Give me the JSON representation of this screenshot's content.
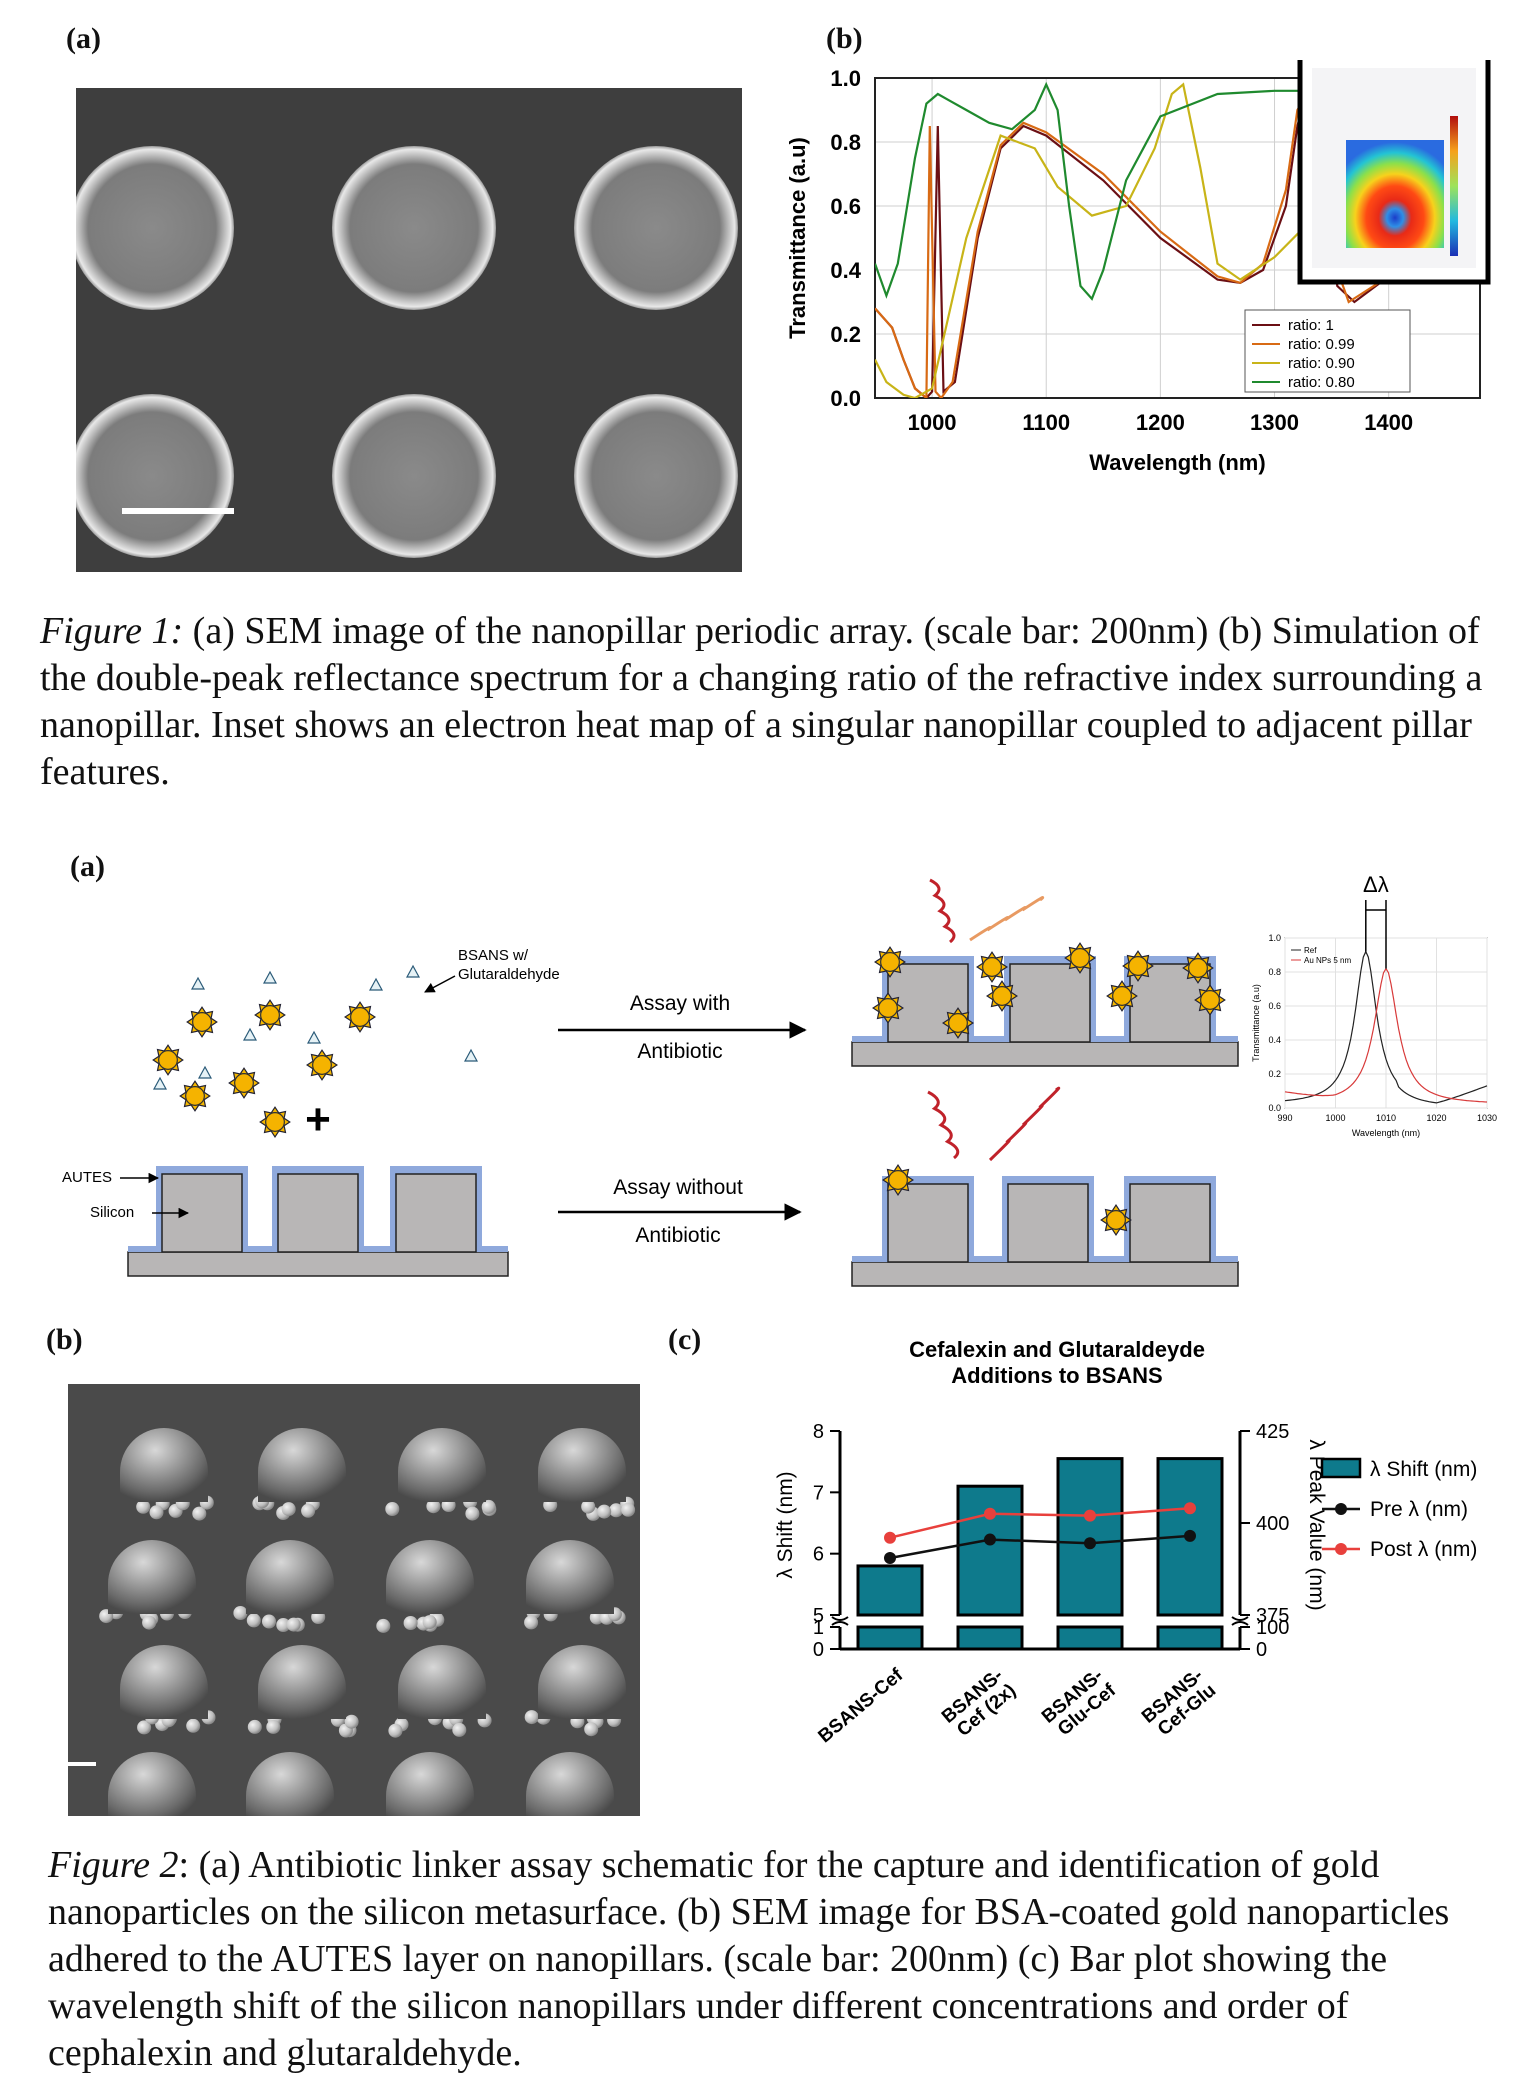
{
  "figure1": {
    "panel_a_label": "(a)",
    "panel_b_label": "(b)",
    "caption": {
      "title": "Figure 1:",
      "text": " (a) SEM image of the nanopillar periodic array. (scale bar: 200nm) (b) Simulation of the double-peak reflectance spectrum for a changing ratio of the refractive index surrounding a nanopillar. Inset shows an electron heat map of a singular nanopillar coupled to adjacent pillar features."
    },
    "chart_data": {
      "type": "line",
      "xlabel": "Wavelength (nm)",
      "ylabel": "Transmittance (a.u)",
      "xlim": [
        950,
        1480
      ],
      "ylim": [
        0,
        1.0
      ],
      "xticks": [
        "1000",
        "1100",
        "1200",
        "1300",
        "1400"
      ],
      "yticks": [
        "0.0",
        "0.2",
        "0.4",
        "0.6",
        "0.8",
        "1.0"
      ],
      "grid": true,
      "legend_position": "bottom-right",
      "series": [
        {
          "name": "ratio: 1",
          "color": "#6b0f14",
          "x": [
            950,
            965,
            975,
            985,
            995,
            1000,
            1005,
            1010,
            1020,
            1040,
            1060,
            1080,
            1100,
            1150,
            1200,
            1250,
            1270,
            1290,
            1310,
            1320,
            1330,
            1340,
            1355,
            1370,
            1400,
            1450,
            1480
          ],
          "y": [
            0.28,
            0.22,
            0.12,
            0.03,
            0.0,
            0.02,
            0.85,
            0.02,
            0.05,
            0.5,
            0.78,
            0.85,
            0.82,
            0.68,
            0.5,
            0.37,
            0.36,
            0.4,
            0.6,
            0.85,
            0.98,
            0.7,
            0.35,
            0.3,
            0.38,
            0.55,
            0.6
          ]
        },
        {
          "name": "ratio: 0.99",
          "color": "#d86a14",
          "x": [
            950,
            965,
            975,
            985,
            995,
            998,
            1003,
            1008,
            1018,
            1040,
            1060,
            1080,
            1100,
            1150,
            1200,
            1250,
            1270,
            1290,
            1310,
            1320,
            1330,
            1345,
            1365,
            1400,
            1450,
            1480
          ],
          "y": [
            0.28,
            0.22,
            0.12,
            0.03,
            0.0,
            0.85,
            0.02,
            0.0,
            0.05,
            0.52,
            0.79,
            0.86,
            0.83,
            0.7,
            0.52,
            0.38,
            0.36,
            0.42,
            0.65,
            0.9,
            0.96,
            0.5,
            0.3,
            0.38,
            0.55,
            0.62
          ]
        },
        {
          "name": "ratio: 0.90",
          "color": "#c8b418",
          "x": [
            950,
            960,
            975,
            985,
            1000,
            1030,
            1060,
            1090,
            1110,
            1140,
            1170,
            1195,
            1210,
            1220,
            1235,
            1250,
            1270,
            1300,
            1350,
            1400,
            1450,
            1480
          ],
          "y": [
            0.12,
            0.05,
            0.01,
            0.0,
            0.03,
            0.5,
            0.82,
            0.78,
            0.66,
            0.57,
            0.6,
            0.78,
            0.95,
            0.98,
            0.72,
            0.42,
            0.37,
            0.44,
            0.62,
            0.78,
            0.86,
            0.9
          ]
        },
        {
          "name": "ratio: 0.80",
          "color": "#1f8a2e",
          "x": [
            950,
            960,
            970,
            985,
            995,
            1005,
            1015,
            1030,
            1050,
            1070,
            1090,
            1100,
            1110,
            1120,
            1130,
            1140,
            1150,
            1170,
            1200,
            1250,
            1300,
            1350,
            1400,
            1480
          ],
          "y": [
            0.42,
            0.32,
            0.42,
            0.75,
            0.92,
            0.95,
            0.93,
            0.9,
            0.86,
            0.84,
            0.9,
            0.98,
            0.9,
            0.6,
            0.35,
            0.31,
            0.4,
            0.68,
            0.88,
            0.95,
            0.96,
            0.96,
            0.96,
            0.96
          ]
        }
      ]
    }
  },
  "figure2": {
    "panel_a_label": "(a)",
    "panel_b_label": "(b)",
    "panel_c_label": "(c)",
    "schematic": {
      "bsans_label": "BSANS w/ Glutaraldehyde",
      "bsans_line1": "BSANS w/",
      "bsans_line2": "Glutaraldehyde",
      "autes_label": "AUTES",
      "silicon_label": "Silicon",
      "assay_with_line1": "Assay with",
      "assay_with_line2": "Antibiotic",
      "assay_without_line1": "Assay without",
      "assay_without_line2": "Antibiotic",
      "delta_lambda": "Δλ",
      "inset": {
        "ylabel": "Transmittance (a.u)",
        "xlabel": "Wavelength (nm)",
        "xticks": [
          "990",
          "1000",
          "1010",
          "1020",
          "1030"
        ],
        "yticks": [
          "0.0",
          "0.2",
          "0.4",
          "0.6",
          "0.8",
          "1.0"
        ],
        "legend": [
          "Ref",
          "Au NPs 5 nm"
        ]
      }
    },
    "caption": {
      "title": "Figure 2",
      "text": ": (a) Antibiotic linker assay schematic for the capture and identification of gold nanoparticles on the silicon metasurface. (b) SEM image for BSA-coated gold nanoparticles adhered to the AUTES layer on nanopillars. (scale bar: 200nm) (c) Bar plot showing the wavelength shift of the silicon nanopillars under different concentrations and order of cephalexin and glutaraldehyde."
    },
    "chart_data": {
      "type": "bar",
      "title": "Cefalexin and Glutaraldeyde Additions to BSANS",
      "title_line1": "Cefalexin and Glutaraldeyde",
      "title_line2": "Additions to BSANS",
      "categories": [
        "BSANS-Cef",
        "BSANS-Cef (2x)",
        "BSANS-Glu-Cef",
        "BSANS-Cef-Glu"
      ],
      "category_lines": [
        [
          "BSANS-Cef"
        ],
        [
          "BSANS-",
          "Cef (2x)"
        ],
        [
          "BSANS-",
          "Glu-Cef"
        ],
        [
          "BSANS-",
          "Cef-Glu"
        ]
      ],
      "ylabel_left": "λ Shift (nm)",
      "ylabel_right": "λ Peak Value (nm)",
      "ylim_left": [
        0,
        8
      ],
      "ylim_right": [
        0,
        425
      ],
      "yticks_left": [
        "0",
        "1",
        "5",
        "6",
        "7",
        "8"
      ],
      "yticks_right": [
        "0",
        "100",
        "375",
        "400",
        "425"
      ],
      "axis_break": true,
      "legend_position": "right",
      "series": [
        {
          "name": "λ Shift (nm)",
          "type": "bar",
          "color": "#0e7a8c",
          "values": [
            5.8,
            7.1,
            7.55,
            7.55
          ]
        },
        {
          "name": "Pre λ (nm)",
          "type": "line",
          "color": "#111111",
          "values": [
            390.5,
            395.5,
            394.5,
            396.5
          ]
        },
        {
          "name": "Post λ (nm)",
          "type": "line",
          "color": "#e8403c",
          "values": [
            396.0,
            402.5,
            402.0,
            404.0
          ]
        }
      ]
    }
  }
}
